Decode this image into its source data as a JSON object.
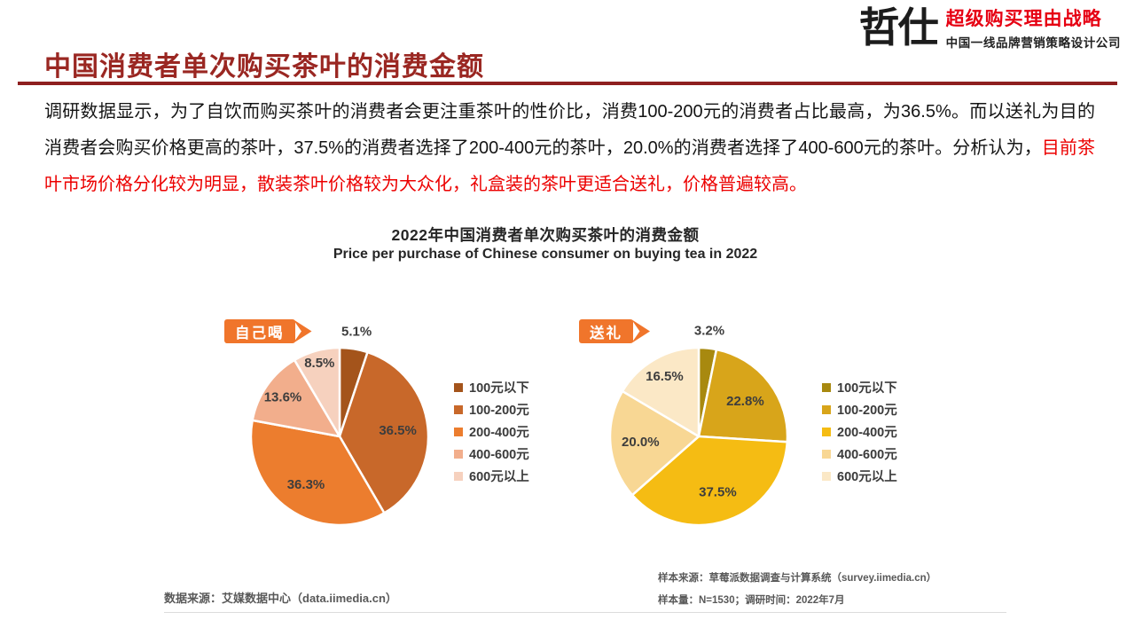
{
  "brand": {
    "title_color": "#9a2722",
    "underline_color": "#8e1f1f",
    "highlight_red": "#ec0000",
    "logo_red": "#e60012",
    "banner_orange": "#f0752b"
  },
  "header": {
    "logo_name": "哲仕",
    "logo_tagline": "超级购买理由战略",
    "logo_subtitle": "中国一线品牌营销策略设计公司",
    "page_title": "中国消费者单次购买茶叶的消费金额"
  },
  "intro": {
    "text_black": "调研数据显示，为了自饮而购买茶叶的消费者会更注重茶叶的性价比，消费100-200元的消费者占比最高，为36.5%。而以送礼为目的消费者会购买价格更高的茶叶，37.5%的消费者选择了200-400元的茶叶，20.0%的消费者选择了400-600元的茶叶。分析认为，",
    "text_red": "目前茶叶市场价格分化较为明显，散装茶叶价格较为大众化，礼盒装的茶叶更适合送礼，价格普遍较高。"
  },
  "chart_data": {
    "type": "pie",
    "title": "2022年中国消费者单次购买茶叶的消费金额",
    "subtitle": "Price per purchase of Chinese consumer on buying tea in 2022",
    "categories": [
      "100元以下",
      "100-200元",
      "200-400元",
      "400-600元",
      "600元以上"
    ],
    "legend_position": "right",
    "unit": "%",
    "pies": [
      {
        "group_label": "自己喝",
        "values": [
          5.1,
          36.5,
          36.3,
          13.6,
          8.5
        ],
        "colors": [
          "#a4541b",
          "#c8682a",
          "#ec7d2e",
          "#f2ae8c",
          "#f6d1be"
        ]
      },
      {
        "group_label": "送礼",
        "values": [
          3.2,
          22.8,
          37.5,
          20.0,
          16.5
        ],
        "colors": [
          "#a8890f",
          "#d8a51a",
          "#f5bc13",
          "#f8d794",
          "#fbe8c6"
        ]
      }
    ]
  },
  "footer": {
    "data_source": "数据来源：艾媒数据中心（data.iimedia.cn）",
    "sample_source": "样本来源：草莓派数据调查与计算系统（survey.iimedia.cn）",
    "sample_info": "样本量：N=1530；调研时间：2022年7月"
  }
}
